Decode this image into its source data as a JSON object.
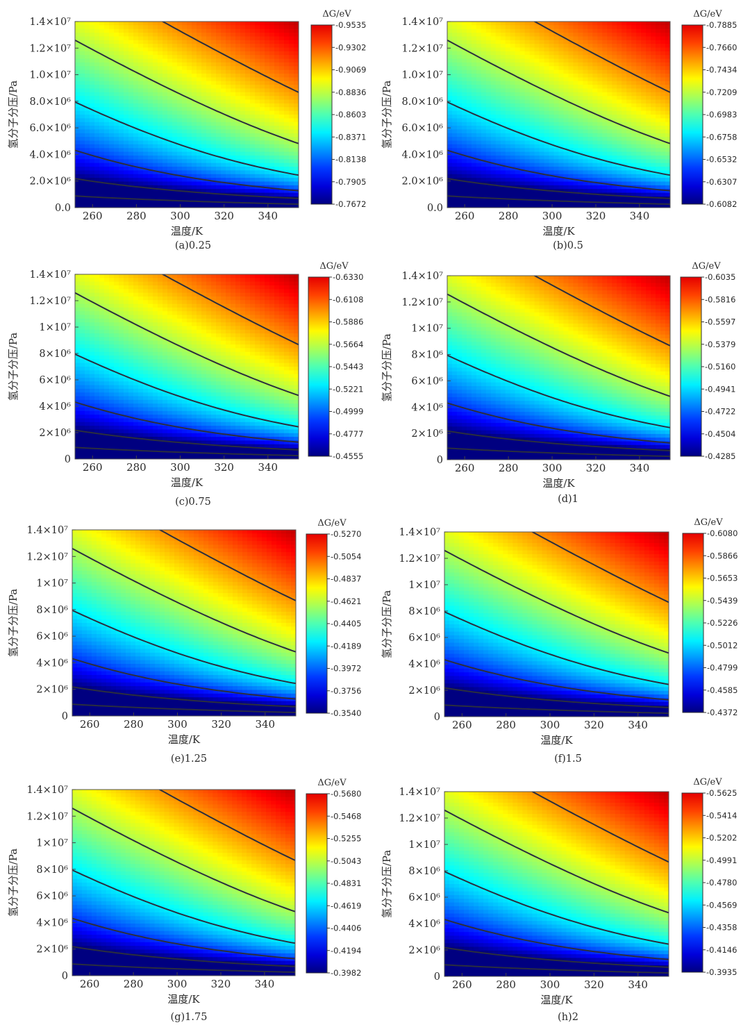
{
  "chart_data": [
    {
      "type": "heatmap",
      "caption": "(a)0.25",
      "xlabel": "温度/K",
      "ylabel": "氢分子分压/Pa",
      "xlim": [
        252,
        354
      ],
      "ylim": [
        0,
        14000000
      ],
      "x_ticks": [
        260,
        280,
        300,
        320,
        340
      ],
      "x_tick_labels": [
        "260",
        "280",
        "300",
        "320",
        "340"
      ],
      "y_ticks": [
        0,
        2000000,
        4000000,
        6000000,
        8000000,
        10000000,
        12000000,
        14000000
      ],
      "y_tick_labels": [
        "0.0",
        "2.0×10⁶",
        "4.0×10⁶",
        "6.0×10⁶",
        "8.0×10⁶",
        "1.0×10⁷",
        "1.2×10⁷",
        "1.4×10⁷"
      ],
      "colorbar_title": "ΔG/eV",
      "colorbar_ticks": [
        "-0.9535",
        "-0.9302",
        "-0.9069",
        "-0.8836",
        "-0.8603",
        "-0.8371",
        "-0.8138",
        "-0.7905",
        "-0.7672"
      ],
      "colorbar_range": [
        -0.9535,
        -0.7672
      ],
      "colormap": "jet (blue = most negative ΔG, red = least negative)",
      "contour_lines": true
    },
    {
      "type": "heatmap",
      "caption": "(b)0.5",
      "xlabel": "温度/K",
      "ylabel": "氢分子分压/Pa",
      "xlim": [
        252,
        354
      ],
      "ylim": [
        0,
        14000000
      ],
      "x_ticks": [
        260,
        280,
        300,
        320,
        340
      ],
      "x_tick_labels": [
        "260",
        "280",
        "300",
        "320",
        "340"
      ],
      "y_ticks": [
        0,
        2000000,
        4000000,
        6000000,
        8000000,
        10000000,
        12000000,
        14000000
      ],
      "y_tick_labels": [
        "0.0",
        "2.0×10⁶",
        "4.0×10⁶",
        "6.0×10⁶",
        "8.0×10⁶",
        "1.0×10⁷",
        "1.2×10⁷",
        "1.4×10⁷"
      ],
      "colorbar_title": "ΔG/eV",
      "colorbar_ticks": [
        "-0.7885",
        "-0.7660",
        "-0.7434",
        "-0.7209",
        "-0.6983",
        "-0.6758",
        "-0.6532",
        "-0.6307",
        "-0.6082"
      ],
      "colorbar_range": [
        -0.7885,
        -0.6082
      ],
      "colormap": "jet (blue = most negative ΔG, red = least negative)",
      "contour_lines": true
    },
    {
      "type": "heatmap",
      "caption": "(c)0.75",
      "xlabel": "温度/K",
      "ylabel": "氢分子分压/Pa",
      "xlim": [
        252,
        354
      ],
      "ylim": [
        0,
        14000000
      ],
      "x_ticks": [
        260,
        280,
        300,
        320,
        340
      ],
      "x_tick_labels": [
        "260",
        "280",
        "300",
        "320",
        "340"
      ],
      "y_ticks": [
        0,
        2000000,
        4000000,
        6000000,
        8000000,
        10000000,
        12000000,
        14000000
      ],
      "y_tick_labels": [
        "0",
        "2×10⁶",
        "4×10⁶",
        "6×10⁶",
        "8×10⁶",
        "1×10⁷",
        "1.2×10⁷",
        "1.4×10⁷"
      ],
      "colorbar_title": "ΔG/eV",
      "colorbar_ticks": [
        "-0.6330",
        "-0.6108",
        "-0.5886",
        "-0.5664",
        "-0.5443",
        "-0.5221",
        "-0.4999",
        "-0.4777",
        "-0.4555"
      ],
      "colorbar_range": [
        -0.633,
        -0.4555
      ],
      "colormap": "jet (blue = most negative ΔG, red = least negative)",
      "contour_lines": true
    },
    {
      "type": "heatmap",
      "caption": "(d)1",
      "xlabel": "温度/K",
      "ylabel": "氢分子分压/Pa",
      "xlim": [
        252,
        354
      ],
      "ylim": [
        0,
        14000000
      ],
      "x_ticks": [
        260,
        280,
        300,
        320,
        340
      ],
      "x_tick_labels": [
        "260",
        "280",
        "300",
        "320",
        "340"
      ],
      "y_ticks": [
        0,
        2000000,
        4000000,
        6000000,
        8000000,
        10000000,
        12000000,
        14000000
      ],
      "y_tick_labels": [
        "0",
        "2×10⁶",
        "4×10⁶",
        "6×10⁶",
        "8×10⁶",
        "1×10⁷",
        "1.2×10⁷",
        "1.4×10⁷"
      ],
      "colorbar_title": "ΔG/eV",
      "colorbar_ticks": [
        "-0.6035",
        "-0.5816",
        "-0.5597",
        "-0.5379",
        "-0.5160",
        "-0.4941",
        "-0.4722",
        "-0.4504",
        "-0.4285"
      ],
      "colorbar_range": [
        -0.6035,
        -0.4285
      ],
      "colormap": "jet (blue = most negative ΔG, red = least negative)",
      "contour_lines": true
    },
    {
      "type": "heatmap",
      "caption": "(e)1.25",
      "xlabel": "温度/K",
      "ylabel": "氢分子分压/Pa",
      "xlim": [
        252,
        354
      ],
      "ylim": [
        0,
        14000000
      ],
      "x_ticks": [
        260,
        280,
        300,
        320,
        340
      ],
      "x_tick_labels": [
        "260",
        "280",
        "300",
        "320",
        "340"
      ],
      "y_ticks": [
        0,
        2000000,
        4000000,
        6000000,
        8000000,
        10000000,
        12000000,
        14000000
      ],
      "y_tick_labels": [
        "0",
        "2×10⁶",
        "4×10⁶",
        "6×10⁶",
        "8×10⁶",
        "1×10⁷",
        "1.2×10⁷",
        "1.4×10⁷"
      ],
      "colorbar_title": "ΔG/eV",
      "colorbar_ticks": [
        "-0.5270",
        "-0.5054",
        "-0.4837",
        "-0.4621",
        "-0.4405",
        "-0.4189",
        "-0.3972",
        "-0.3756",
        "-0.3540"
      ],
      "colorbar_range": [
        -0.527,
        -0.354
      ],
      "colormap": "jet (blue = most negative ΔG, red = least negative)",
      "contour_lines": true
    },
    {
      "type": "heatmap",
      "caption": "(f)1.5",
      "xlabel": "温度/K",
      "ylabel": "氢分子分压/Pa",
      "xlim": [
        252,
        354
      ],
      "ylim": [
        0,
        14000000
      ],
      "x_ticks": [
        260,
        280,
        300,
        320,
        340
      ],
      "x_tick_labels": [
        "260",
        "280",
        "300",
        "320",
        "340"
      ],
      "y_ticks": [
        0,
        2000000,
        4000000,
        6000000,
        8000000,
        10000000,
        12000000,
        14000000
      ],
      "y_tick_labels": [
        "0",
        "2×10⁶",
        "4×10⁶",
        "6×10⁶",
        "8×10⁶",
        "1×10⁷",
        "1.2×10⁷",
        "1.4×10⁷"
      ],
      "colorbar_title": "ΔG/eV",
      "colorbar_ticks": [
        "-0.6080",
        "-0.5866",
        "-0.5653",
        "-0.5439",
        "-0.5226",
        "-0.5012",
        "-0.4799",
        "-0.4585",
        "-0.4372"
      ],
      "colorbar_range": [
        -0.608,
        -0.4372
      ],
      "colormap": "jet (blue = most negative ΔG, red = least negative)",
      "contour_lines": true
    },
    {
      "type": "heatmap",
      "caption": "(g)1.75",
      "xlabel": "温度/K",
      "ylabel": "氢分子分压/Pa",
      "xlim": [
        252,
        354
      ],
      "ylim": [
        0,
        14000000
      ],
      "x_ticks": [
        260,
        280,
        300,
        320,
        340
      ],
      "x_tick_labels": [
        "260",
        "280",
        "300",
        "320",
        "340"
      ],
      "y_ticks": [
        0,
        2000000,
        4000000,
        6000000,
        8000000,
        10000000,
        12000000,
        14000000
      ],
      "y_tick_labels": [
        "0",
        "2×10⁶",
        "4×10⁶",
        "6×10⁶",
        "8×10⁶",
        "1×10⁷",
        "1.2×10⁷",
        "1.4×10⁷"
      ],
      "colorbar_title": "ΔG/eV",
      "colorbar_ticks": [
        "-0.5680",
        "-0.5468",
        "-0.5255",
        "-0.5043",
        "-0.4831",
        "-0.4619",
        "-0.4406",
        "-0.4194",
        "-0.3982"
      ],
      "colorbar_range": [
        -0.568,
        -0.3982
      ],
      "colormap": "jet (blue = most negative ΔG, red = least negative)",
      "contour_lines": true
    },
    {
      "type": "heatmap",
      "caption": "(h)2",
      "xlabel": "温度/K",
      "ylabel": "氢分子分压/Pa",
      "xlim": [
        252,
        354
      ],
      "ylim": [
        0,
        14000000
      ],
      "x_ticks": [
        260,
        280,
        300,
        320,
        340
      ],
      "x_tick_labels": [
        "260",
        "280",
        "300",
        "320",
        "340"
      ],
      "y_ticks": [
        0,
        2000000,
        4000000,
        6000000,
        8000000,
        10000000,
        12000000,
        14000000
      ],
      "y_tick_labels": [
        "0",
        "2×10⁶",
        "4×10⁶",
        "6×10⁶",
        "8×10⁶",
        "1×10⁷",
        "1.2×10⁷",
        "1.4×10⁷"
      ],
      "colorbar_title": "ΔG/eV",
      "colorbar_ticks": [
        "-0.5625",
        "-0.5414",
        "-0.5202",
        "-0.4991",
        "-0.4780",
        "-0.4569",
        "-0.4358",
        "-0.4146",
        "-0.3935"
      ],
      "colorbar_range": [
        -0.5625,
        -0.3935
      ],
      "colormap": "jet (blue = most negative ΔG, red = least negative)",
      "contour_lines": true
    }
  ]
}
